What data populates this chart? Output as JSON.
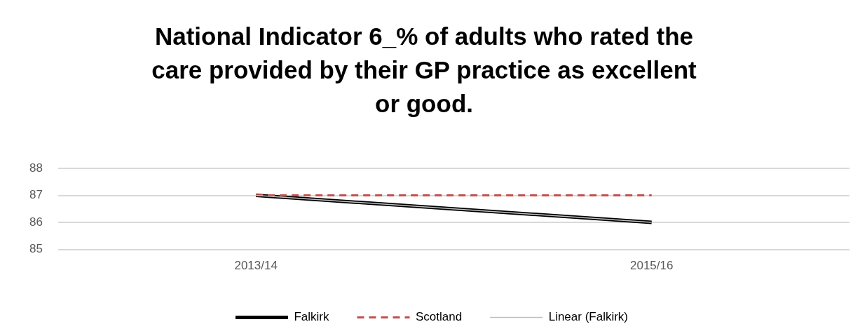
{
  "chart_data": {
    "type": "line",
    "title": "National Indicator 6_% of adults who rated the care provided by their GP practice as excellent or good.",
    "categories": [
      "2013/14",
      "2015/16"
    ],
    "series": [
      {
        "name": "Falkirk",
        "color": "#000000",
        "values": [
          87,
          86
        ],
        "line_style": "solid"
      },
      {
        "name": "Scotland",
        "color": "#c0504d",
        "values": [
          87,
          87
        ],
        "line_style": "dashed"
      },
      {
        "name": "Linear (Falkirk)",
        "color": "#bfbfbf",
        "values": [
          87,
          86
        ],
        "line_style": "solid"
      }
    ],
    "ylim": [
      85,
      88
    ],
    "yticks": [
      85,
      86,
      87,
      88
    ],
    "grid": "y",
    "legend": "bottom",
    "marker": "none"
  }
}
